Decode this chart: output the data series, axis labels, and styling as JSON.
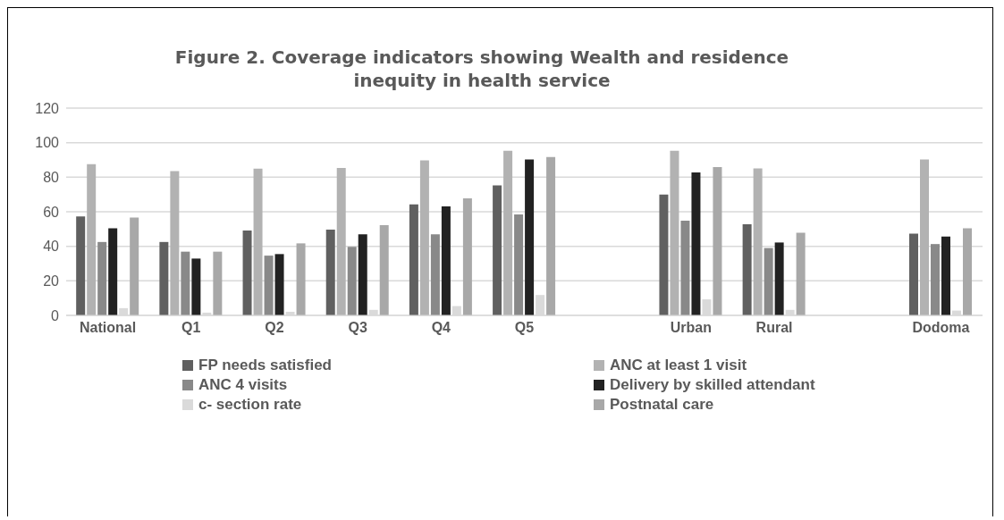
{
  "chart_data": {
    "type": "bar",
    "title": "Figure 2. Coverage indicators showing Wealth and residence inequity in health service",
    "categories": [
      "National",
      "Q1",
      "Q2",
      "Q3",
      "Q4",
      "Q5",
      null,
      "Urban",
      "Rural",
      null,
      "Dodoma"
    ],
    "series": [
      {
        "name": "FP needs satisfied",
        "color": "#606060",
        "values": [
          57.3,
          42.5,
          49.2,
          49.6,
          64.3,
          75.2,
          null,
          70,
          52.7,
          null,
          47.3
        ]
      },
      {
        "name": "ANC at least 1 visit",
        "color": "#b2b2b2",
        "values": [
          87.5,
          83.5,
          84.9,
          85.4,
          89.8,
          95.3,
          null,
          95.3,
          85.1,
          null,
          90.3
        ]
      },
      {
        "name": "ANC 4 visits",
        "color": "#898989",
        "values": [
          42.5,
          36.9,
          34.6,
          39.7,
          46.9,
          58.5,
          null,
          54.8,
          39,
          null,
          41.3
        ]
      },
      {
        "name": "Delivery by skilled attendant",
        "color": "#222222",
        "values": [
          50.4,
          32.9,
          35.5,
          46.9,
          63.1,
          90.2,
          null,
          82.8,
          42.2,
          null,
          45.7
        ]
      },
      {
        "name": "c- section rate",
        "color": "#dadada",
        "values": [
          4.2,
          1.6,
          2.1,
          3.2,
          5.4,
          11.8,
          null,
          9.3,
          3.2,
          null,
          2.8
        ]
      },
      {
        "name": "Postnatal care",
        "color": "#a8a8a8",
        "values": [
          56.6,
          36.9,
          41.7,
          52.2,
          67.8,
          91.7,
          null,
          85.8,
          47.8,
          null,
          50.4
        ]
      }
    ],
    "ylim": [
      0,
      120
    ],
    "yticks": [
      0,
      20,
      40,
      60,
      80,
      100,
      120
    ],
    "grid": "y",
    "legend": "bottom"
  }
}
